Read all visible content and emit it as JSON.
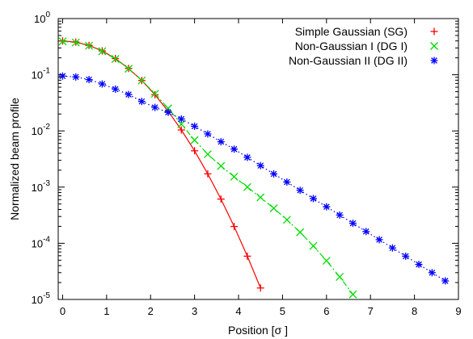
{
  "chart_data": {
    "type": "line",
    "title": "",
    "xlabel": "Position [σ ]",
    "ylabel": "Normalized beam profile",
    "xlim": [
      -0.1,
      9.0
    ],
    "ylim": [
      1e-05,
      1
    ],
    "yscale": "log",
    "grid": false,
    "legend_position": "top-right",
    "x_ticks": [
      {
        "value": 0,
        "label": "0"
      },
      {
        "value": 1,
        "label": "1"
      },
      {
        "value": 2,
        "label": "2"
      },
      {
        "value": 3,
        "label": "3"
      },
      {
        "value": 4,
        "label": "4"
      },
      {
        "value": 5,
        "label": "5"
      },
      {
        "value": 6,
        "label": "6"
      },
      {
        "value": 7,
        "label": "7"
      },
      {
        "value": 8,
        "label": "8"
      },
      {
        "value": 9,
        "label": "9"
      }
    ],
    "y_ticks": [
      {
        "value": 1,
        "base": "10",
        "exp": "0"
      },
      {
        "value": 0.1,
        "base": "10",
        "exp": "-1"
      },
      {
        "value": 0.01,
        "base": "10",
        "exp": "-2"
      },
      {
        "value": 0.001,
        "base": "10",
        "exp": "-3"
      },
      {
        "value": 0.0001,
        "base": "10",
        "exp": "-4"
      },
      {
        "value": 1e-05,
        "base": "10",
        "exp": "-5"
      }
    ],
    "series": [
      {
        "name": "Simple Gaussian (SG)",
        "color": "#ff0000",
        "marker": "plus",
        "line_style": "solid",
        "x": [
          0,
          0.3,
          0.6,
          0.9,
          1.2,
          1.5,
          1.8,
          2.1,
          2.4,
          2.7,
          3.0,
          3.3,
          3.6,
          3.9,
          4.2,
          4.5
        ],
        "y": [
          0.3989,
          0.3814,
          0.3332,
          0.2661,
          0.1942,
          0.1295,
          0.079,
          0.044,
          0.0224,
          0.0104,
          0.00443,
          0.00172,
          0.000612,
          0.000199,
          5.89e-05,
          1.6e-05
        ]
      },
      {
        "name": "Non-Gaussian I (DG I)",
        "color": "#00dd00",
        "marker": "cross",
        "line_style": "dashdot",
        "x": [
          0,
          0.3,
          0.6,
          0.9,
          1.2,
          1.5,
          1.8,
          2.1,
          2.4,
          2.7,
          3.0,
          3.3,
          3.6,
          3.9,
          4.2,
          4.5,
          4.8,
          5.1,
          5.4,
          5.7,
          6.0,
          6.3,
          6.6
        ],
        "y": [
          0.392,
          0.375,
          0.328,
          0.262,
          0.191,
          0.128,
          0.0791,
          0.0458,
          0.0252,
          0.0132,
          0.00685,
          0.00385,
          0.00237,
          0.00153,
          0.001,
          0.000655,
          0.00042,
          0.000262,
          0.000157,
          8.97e-05,
          4.88e-05,
          2.52e-05,
          1.23e-05
        ]
      },
      {
        "name": "Non-Gaussian II (DG II)",
        "color": "#0000ff",
        "marker": "star",
        "line_style": "dotted",
        "x": [
          0,
          0.3,
          0.6,
          0.9,
          1.2,
          1.5,
          1.8,
          2.1,
          2.4,
          2.7,
          3.0,
          3.3,
          3.6,
          3.9,
          4.2,
          4.5,
          4.8,
          5.1,
          5.4,
          5.7,
          6.0,
          6.3,
          6.6,
          6.9,
          7.2,
          7.5,
          7.8,
          8.1,
          8.4,
          8.7
        ],
        "y": [
          0.0948,
          0.0913,
          0.082,
          0.0685,
          0.0555,
          0.0445,
          0.0335,
          0.0262,
          0.0214,
          0.0163,
          0.0121,
          0.00884,
          0.00642,
          0.00474,
          0.00338,
          0.00241,
          0.00172,
          0.00123,
          0.000876,
          0.000625,
          0.000446,
          0.000318,
          0.000227,
          0.000162,
          0.000116,
          8.26e-05,
          5.89e-05,
          4.2e-05,
          3e-05,
          2.14e-05
        ]
      }
    ]
  }
}
